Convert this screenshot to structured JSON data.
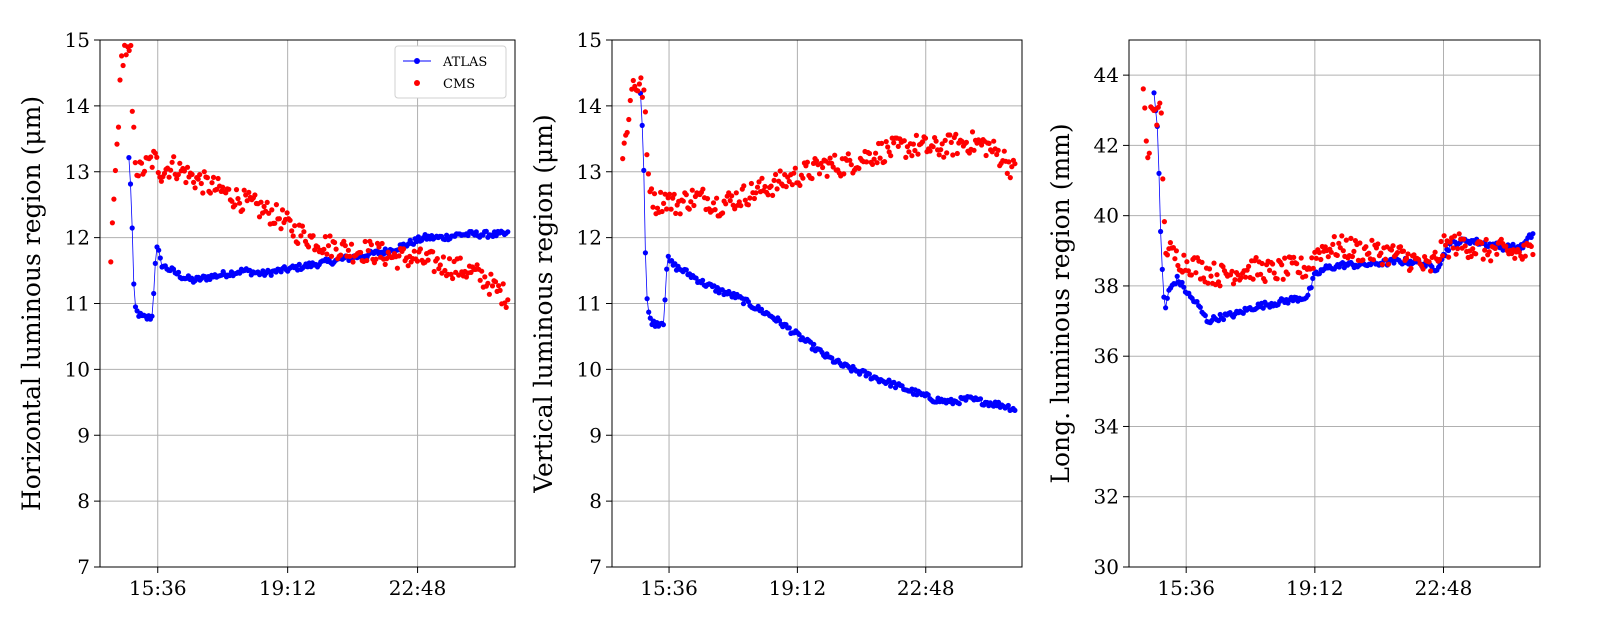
{
  "chart_data": [
    {
      "type": "scatter",
      "ylabel": "Horizontal luminous region (μm)",
      "xlabel": "",
      "x_ticks": [
        "15:36",
        "19:12",
        "22:48"
      ],
      "x_tick_hours": [
        15.6,
        19.2,
        22.8
      ],
      "xlim_hours": [
        14.0,
        25.5
      ],
      "ylim": [
        7,
        15
      ],
      "y_ticks": [
        7,
        8,
        9,
        10,
        11,
        12,
        13,
        14,
        15
      ],
      "grid": true,
      "legend": {
        "placement": "top-right",
        "entries": [
          {
            "label": "ATLAS",
            "color": "#0000ff",
            "marker": "line-dot"
          },
          {
            "label": "CMS",
            "color": "#ff0000",
            "marker": "dot"
          }
        ]
      },
      "series": [
        {
          "name": "ATLAS",
          "color": "#0000ff",
          "style": "line-dot",
          "x": [
            14.8,
            14.85,
            14.9,
            14.95,
            15.0,
            15.05,
            15.15,
            15.3,
            15.45,
            15.55,
            15.6,
            15.65,
            15.7,
            15.8,
            16.0,
            16.3,
            16.6,
            17.0,
            17.5,
            18.0,
            18.5,
            19.0,
            19.5,
            20.0,
            20.5,
            21.0,
            21.5,
            22.0,
            22.5,
            23.0,
            23.5,
            24.0,
            24.5,
            25.0,
            25.3
          ],
          "values": [
            13.2,
            12.8,
            12.0,
            11.0,
            10.9,
            10.85,
            10.8,
            10.78,
            10.8,
            11.8,
            11.85,
            11.7,
            11.6,
            11.55,
            11.5,
            11.4,
            11.35,
            11.4,
            11.45,
            11.5,
            11.45,
            11.5,
            11.55,
            11.6,
            11.65,
            11.7,
            11.75,
            11.8,
            11.9,
            12.0,
            12.0,
            12.05,
            12.05,
            12.05,
            12.05
          ]
        },
        {
          "name": "CMS",
          "color": "#ff0000",
          "style": "dot",
          "x": [
            14.3,
            14.6,
            14.7,
            14.75,
            14.8,
            14.85,
            14.9,
            15.0,
            15.1,
            15.3,
            15.5,
            15.7,
            16.0,
            16.3,
            16.6,
            17.0,
            17.4,
            17.8,
            18.2,
            18.6,
            19.0,
            19.4,
            19.8,
            20.2,
            20.6,
            21.0,
            21.4,
            21.8,
            22.2,
            22.6,
            23.0,
            23.4,
            23.8,
            24.2,
            24.6,
            25.0,
            25.3
          ],
          "values": [
            11.7,
            14.7,
            14.9,
            14.8,
            14.75,
            14.8,
            13.8,
            13.1,
            13.0,
            13.1,
            13.2,
            13.0,
            13.1,
            13.0,
            12.9,
            12.8,
            12.7,
            12.6,
            12.5,
            12.4,
            12.3,
            12.1,
            12.0,
            11.9,
            11.85,
            11.8,
            11.8,
            11.75,
            11.7,
            11.7,
            11.65,
            11.6,
            11.55,
            11.5,
            11.4,
            11.2,
            11.1
          ]
        }
      ]
    },
    {
      "type": "scatter",
      "ylabel": "Vertical luminous region (μm)",
      "xlabel": "",
      "x_ticks": [
        "15:36",
        "19:12",
        "22:48"
      ],
      "x_tick_hours": [
        15.6,
        19.2,
        22.8
      ],
      "xlim_hours": [
        14.0,
        25.5
      ],
      "ylim": [
        7,
        15
      ],
      "y_ticks": [
        7,
        8,
        9,
        10,
        11,
        12,
        13,
        14,
        15
      ],
      "grid": true,
      "series": [
        {
          "name": "ATLAS",
          "color": "#0000ff",
          "style": "line-dot",
          "x": [
            14.8,
            14.85,
            14.9,
            14.95,
            15.0,
            15.05,
            15.15,
            15.3,
            15.45,
            15.55,
            15.6,
            15.7,
            15.8,
            16.0,
            16.3,
            16.6,
            17.0,
            17.5,
            18.0,
            18.5,
            19.0,
            19.5,
            20.0,
            20.5,
            21.0,
            21.5,
            22.0,
            22.5,
            23.0,
            23.5,
            24.0,
            24.5,
            25.0,
            25.3
          ],
          "values": [
            14.2,
            13.7,
            12.9,
            11.4,
            10.9,
            10.8,
            10.7,
            10.7,
            10.72,
            11.7,
            11.65,
            11.6,
            11.55,
            11.5,
            11.4,
            11.3,
            11.2,
            11.1,
            10.95,
            10.8,
            10.6,
            10.4,
            10.2,
            10.05,
            9.95,
            9.85,
            9.75,
            9.65,
            9.55,
            9.5,
            9.55,
            9.5,
            9.45,
            9.4
          ]
        },
        {
          "name": "CMS",
          "color": "#ff0000",
          "style": "dot",
          "x": [
            14.3,
            14.6,
            14.7,
            14.8,
            14.9,
            15.0,
            15.2,
            15.5,
            15.8,
            16.2,
            16.6,
            17.0,
            17.5,
            18.0,
            18.5,
            19.0,
            19.5,
            20.0,
            20.5,
            21.0,
            21.5,
            22.0,
            22.5,
            23.0,
            23.5,
            24.0,
            24.5,
            25.0,
            25.3
          ],
          "values": [
            13.2,
            14.4,
            14.3,
            14.3,
            14.2,
            13.0,
            12.5,
            12.6,
            12.5,
            12.6,
            12.6,
            12.5,
            12.6,
            12.7,
            12.8,
            12.9,
            13.0,
            13.1,
            13.1,
            13.2,
            13.3,
            13.35,
            13.4,
            13.35,
            13.4,
            13.45,
            13.4,
            13.2,
            13.0
          ]
        }
      ]
    },
    {
      "type": "scatter",
      "ylabel": "Long. luminous region (mm)",
      "xlabel": "",
      "x_ticks": [
        "15:36",
        "19:12",
        "22:48"
      ],
      "x_tick_hours": [
        15.6,
        19.2,
        22.8
      ],
      "xlim_hours": [
        14.0,
        25.5
      ],
      "ylim": [
        30,
        45
      ],
      "y_ticks": [
        30,
        32,
        34,
        36,
        38,
        40,
        42,
        44
      ],
      "grid": true,
      "series": [
        {
          "name": "ATLAS",
          "color": "#0000ff",
          "style": "line-dot",
          "x": [
            14.7,
            14.8,
            14.9,
            15.0,
            15.05,
            15.1,
            15.2,
            15.35,
            15.5,
            15.7,
            15.9,
            16.2,
            16.5,
            17.0,
            17.5,
            18.0,
            18.5,
            19.0,
            19.2,
            19.5,
            20.0,
            20.5,
            21.0,
            21.5,
            22.0,
            22.3,
            22.6,
            23.0,
            23.5,
            24.0,
            24.5,
            25.0,
            25.3
          ],
          "values": [
            43.5,
            42.5,
            39.0,
            37.3,
            37.5,
            37.8,
            38.0,
            38.2,
            38.0,
            37.7,
            37.5,
            37.0,
            37.1,
            37.2,
            37.4,
            37.5,
            37.6,
            37.7,
            38.3,
            38.5,
            38.6,
            38.6,
            38.65,
            38.7,
            38.7,
            38.6,
            38.5,
            39.2,
            39.3,
            39.2,
            39.1,
            39.1,
            39.5
          ]
        },
        {
          "name": "CMS",
          "color": "#ff0000",
          "style": "dot",
          "x": [
            14.4,
            14.5,
            14.55,
            14.6,
            14.7,
            14.8,
            14.9,
            15.0,
            15.2,
            15.5,
            15.8,
            16.2,
            16.6,
            17.0,
            17.5,
            18.0,
            18.5,
            19.0,
            19.3,
            19.6,
            20.0,
            20.5,
            21.0,
            21.5,
            22.0,
            22.4,
            22.8,
            23.2,
            23.6,
            24.0,
            24.5,
            25.0,
            25.3
          ],
          "values": [
            43.6,
            42.0,
            41.0,
            42.9,
            43.2,
            42.8,
            43.0,
            39.2,
            38.9,
            38.7,
            38.6,
            38.4,
            38.3,
            38.4,
            38.5,
            38.4,
            38.5,
            38.5,
            39.0,
            39.1,
            39.1,
            39.0,
            38.95,
            38.9,
            38.7,
            38.5,
            39.1,
            39.2,
            39.1,
            39.0,
            39.0,
            38.9,
            39.0
          ]
        }
      ]
    }
  ]
}
